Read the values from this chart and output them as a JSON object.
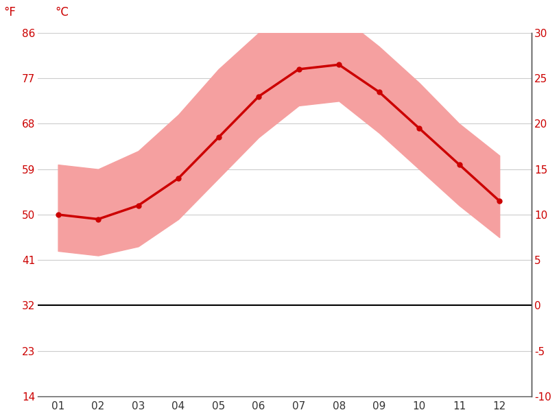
{
  "months": [
    1,
    2,
    3,
    4,
    5,
    6,
    7,
    8,
    9,
    10,
    11,
    12
  ],
  "month_labels": [
    "01",
    "02",
    "03",
    "04",
    "05",
    "06",
    "07",
    "08",
    "09",
    "10",
    "11",
    "12"
  ],
  "avg_temp_c": [
    10.0,
    9.5,
    11.0,
    14.0,
    18.5,
    23.0,
    26.0,
    26.5,
    23.5,
    19.5,
    15.5,
    11.5
  ],
  "max_temp_c": [
    15.5,
    15.0,
    17.0,
    21.0,
    26.0,
    30.0,
    32.5,
    32.0,
    28.5,
    24.5,
    20.0,
    16.5
  ],
  "min_temp_c": [
    6.0,
    5.5,
    6.5,
    9.5,
    14.0,
    18.5,
    22.0,
    22.5,
    19.0,
    15.0,
    11.0,
    7.5
  ],
  "line_color": "#cc0000",
  "band_color": "#f5a0a0",
  "zero_line_color": "#000000",
  "grid_color": "#cccccc",
  "axis_color": "#555555",
  "tick_color": "#cc0000",
  "background_color": "#ffffff",
  "ylim": [
    -10,
    30
  ],
  "yticks_c": [
    -10,
    -5,
    0,
    5,
    10,
    15,
    20,
    25,
    30
  ],
  "yticks_f": [
    14,
    23,
    32,
    41,
    50,
    59,
    68,
    77,
    86
  ],
  "ylabel_c": "°C",
  "ylabel_f": "°F",
  "figsize": [
    8.15,
    6.11
  ],
  "dpi": 100
}
